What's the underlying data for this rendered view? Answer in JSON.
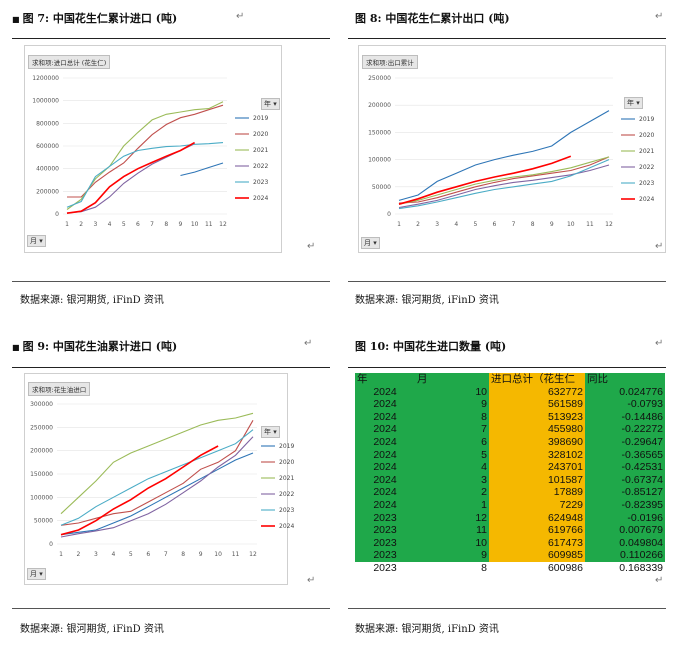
{
  "panels": {
    "fig7": {
      "title": "图 7:  中国花生仁累计进口 (吨)",
      "field": "求和项:进口总计 (花生仁)",
      "month_btn": "月",
      "year_btn": "年",
      "source": "数据来源:  银河期货,  iFinD 资讯"
    },
    "fig8": {
      "title": "图 8:  中国花生仁累计出口 (吨)",
      "field": "求和项:出口累计",
      "month_btn": "月",
      "year_btn": "年",
      "source": "数据来源:  银河期货,  iFinD 资讯"
    },
    "fig9": {
      "title": "图 9:  中国花生油累计进口 (吨)",
      "field": "求和项:花生油进口",
      "month_btn": "月",
      "year_btn": "年",
      "source": "数据来源:  银河期货,  iFinD 资讯"
    },
    "fig10": {
      "title": "图 10:  中国花生进口数量 (吨)",
      "source": "数据来源:  银河期货,  iFinD 资讯"
    }
  },
  "chart_data": [
    {
      "type": "line",
      "x": [
        1,
        2,
        3,
        4,
        5,
        6,
        7,
        8,
        9,
        10,
        11,
        12
      ],
      "ylim": [
        0,
        1200000
      ],
      "yticks": [
        "0",
        "200000",
        "400000",
        "600000",
        "800000",
        "1000000",
        "1200000"
      ],
      "series": [
        {
          "name": "2019",
          "color": "#2e75b6",
          "values": [
            null,
            null,
            null,
            null,
            null,
            null,
            null,
            null,
            340000,
            370000,
            410000,
            450000
          ]
        },
        {
          "name": "2020",
          "color": "#c0504d",
          "values": [
            150000,
            150000,
            280000,
            370000,
            450000,
            580000,
            700000,
            790000,
            850000,
            880000,
            920000,
            960000
          ]
        },
        {
          "name": "2021",
          "color": "#9bbb59",
          "values": [
            40000,
            130000,
            310000,
            420000,
            600000,
            720000,
            830000,
            880000,
            900000,
            920000,
            930000,
            990000
          ]
        },
        {
          "name": "2022",
          "color": "#8064a2",
          "values": [
            10000,
            20000,
            60000,
            150000,
            270000,
            360000,
            440000,
            500000,
            560000,
            620000,
            null,
            null
          ]
        },
        {
          "name": "2023",
          "color": "#4bacc6",
          "values": [
            60000,
            110000,
            330000,
            420000,
            510000,
            560000,
            580000,
            595000,
            600000,
            615000,
            620000,
            630000
          ]
        },
        {
          "name": "2024",
          "color": "#ff0000",
          "values": [
            7000,
            25000,
            100000,
            240000,
            330000,
            400000,
            455000,
            510000,
            560000,
            630000,
            null,
            null
          ]
        }
      ]
    },
    {
      "type": "line",
      "x": [
        1,
        2,
        3,
        4,
        5,
        6,
        7,
        8,
        9,
        10,
        11,
        12
      ],
      "ylim": [
        0,
        250000
      ],
      "yticks": [
        "0",
        "50000",
        "100000",
        "150000",
        "200000",
        "250000"
      ],
      "series": [
        {
          "name": "2019",
          "color": "#2e75b6",
          "values": [
            25000,
            35000,
            60000,
            75000,
            90000,
            100000,
            108000,
            115000,
            125000,
            150000,
            170000,
            190000
          ]
        },
        {
          "name": "2020",
          "color": "#c0504d",
          "values": [
            20000,
            22000,
            30000,
            40000,
            50000,
            58000,
            65000,
            70000,
            75000,
            80000,
            90000,
            105000
          ]
        },
        {
          "name": "2021",
          "color": "#9bbb59",
          "values": [
            18000,
            25000,
            35000,
            45000,
            55000,
            62000,
            68000,
            72000,
            78000,
            85000,
            95000,
            105000
          ]
        },
        {
          "name": "2022",
          "color": "#8064a2",
          "values": [
            12000,
            18000,
            25000,
            35000,
            45000,
            52000,
            58000,
            62000,
            67000,
            72000,
            80000,
            90000
          ]
        },
        {
          "name": "2023",
          "color": "#4bacc6",
          "values": [
            10000,
            15000,
            22000,
            30000,
            38000,
            45000,
            50000,
            55000,
            60000,
            70000,
            85000,
            100000
          ]
        },
        {
          "name": "2024",
          "color": "#ff0000",
          "values": [
            18000,
            28000,
            40000,
            50000,
            60000,
            68000,
            75000,
            83000,
            93000,
            106000,
            null,
            null
          ]
        }
      ]
    },
    {
      "type": "line",
      "x": [
        1,
        2,
        3,
        4,
        5,
        6,
        7,
        8,
        9,
        10,
        11,
        12
      ],
      "ylim": [
        0,
        300000
      ],
      "yticks": [
        "0",
        "50000",
        "100000",
        "150000",
        "200000",
        "250000",
        "300000"
      ],
      "series": [
        {
          "name": "2019",
          "color": "#2e75b6",
          "values": [
            20000,
            25000,
            30000,
            45000,
            60000,
            80000,
            100000,
            120000,
            140000,
            160000,
            180000,
            195000
          ]
        },
        {
          "name": "2020",
          "color": "#c0504d",
          "values": [
            40000,
            45000,
            55000,
            65000,
            70000,
            90000,
            110000,
            130000,
            160000,
            175000,
            200000,
            265000
          ]
        },
        {
          "name": "2021",
          "color": "#9bbb59",
          "values": [
            65000,
            100000,
            135000,
            175000,
            195000,
            210000,
            225000,
            240000,
            255000,
            265000,
            270000,
            280000
          ]
        },
        {
          "name": "2022",
          "color": "#8064a2",
          "values": [
            15000,
            22000,
            28000,
            35000,
            50000,
            65000,
            85000,
            110000,
            135000,
            165000,
            190000,
            230000
          ]
        },
        {
          "name": "2023",
          "color": "#4bacc6",
          "values": [
            40000,
            55000,
            80000,
            100000,
            120000,
            140000,
            155000,
            170000,
            185000,
            200000,
            215000,
            245000
          ]
        },
        {
          "name": "2024",
          "color": "#ff0000",
          "values": [
            20000,
            30000,
            50000,
            75000,
            95000,
            120000,
            140000,
            165000,
            190000,
            210000,
            null,
            null
          ]
        }
      ]
    }
  ],
  "table": {
    "headers": [
      "年",
      "月",
      "进口总计（花生仁",
      "同比"
    ],
    "rows": [
      {
        "year": "2024",
        "month": "10",
        "value": "632772",
        "yoy": "0.024776"
      },
      {
        "year": "2024",
        "month": "9",
        "value": "561589",
        "yoy": "-0.0793"
      },
      {
        "year": "2024",
        "month": "8",
        "value": "513923",
        "yoy": "-0.14486"
      },
      {
        "year": "2024",
        "month": "7",
        "value": "455980",
        "yoy": "-0.22272"
      },
      {
        "year": "2024",
        "month": "6",
        "value": "398690",
        "yoy": "-0.29647"
      },
      {
        "year": "2024",
        "month": "5",
        "value": "328102",
        "yoy": "-0.36565"
      },
      {
        "year": "2024",
        "month": "4",
        "value": "243701",
        "yoy": "-0.42531"
      },
      {
        "year": "2024",
        "month": "3",
        "value": "101587",
        "yoy": "-0.67374"
      },
      {
        "year": "2024",
        "month": "2",
        "value": "17889",
        "yoy": "-0.85127"
      },
      {
        "year": "2024",
        "month": "1",
        "value": "7229",
        "yoy": "-0.82395"
      },
      {
        "year": "2023",
        "month": "12",
        "value": "624948",
        "yoy": "-0.0196"
      },
      {
        "year": "2023",
        "month": "11",
        "value": "619766",
        "yoy": "0.007679"
      },
      {
        "year": "2023",
        "month": "10",
        "value": "617473",
        "yoy": "0.049804"
      },
      {
        "year": "2023",
        "month": "9",
        "value": "609985",
        "yoy": "0.110266"
      },
      {
        "year": "2023",
        "month": "8",
        "value": "600986",
        "yoy": "0.168339"
      }
    ]
  }
}
